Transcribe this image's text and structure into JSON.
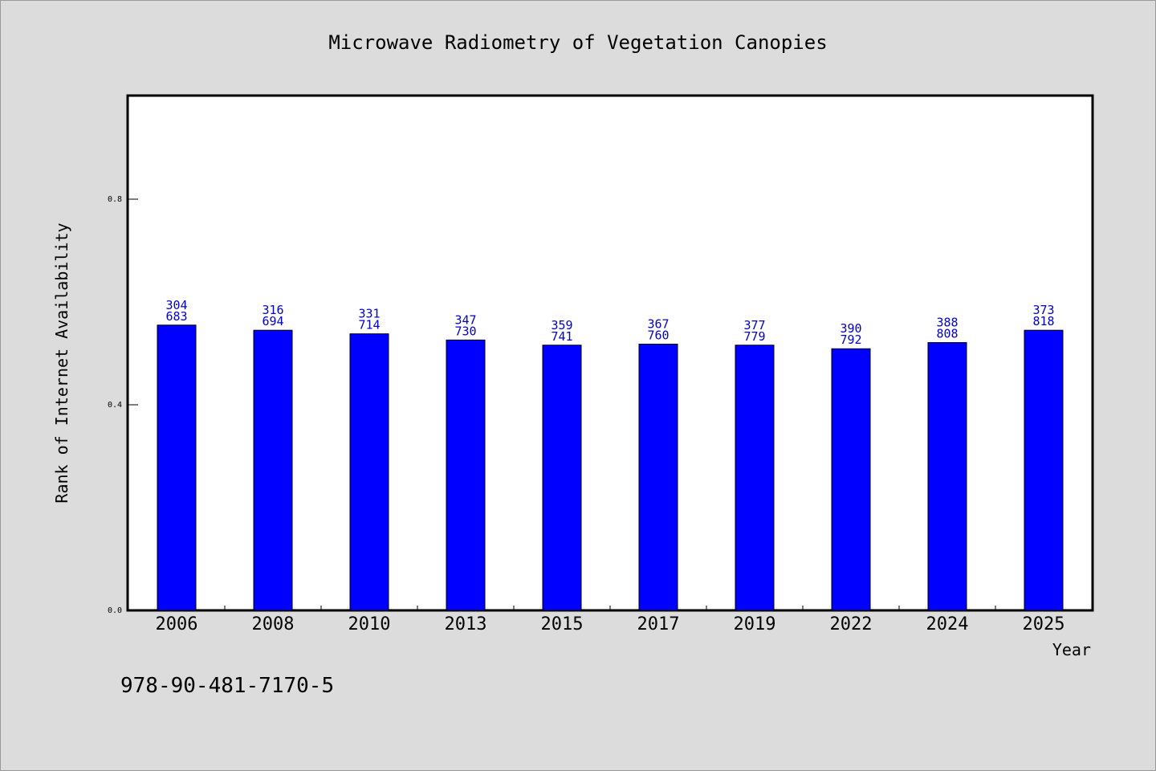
{
  "chart_data": {
    "type": "bar",
    "title": "Microwave Radiometry of Vegetation Canopies",
    "xlabel": "Year",
    "ylabel": "Rank of Internet Availability",
    "categories": [
      "2006",
      "2008",
      "2010",
      "2013",
      "2015",
      "2017",
      "2019",
      "2022",
      "2024",
      "2025"
    ],
    "values": [
      0.555,
      0.545,
      0.538,
      0.526,
      0.516,
      0.518,
      0.516,
      0.509,
      0.521,
      0.545
    ],
    "bar_labels": [
      [
        "304",
        "683"
      ],
      [
        "316",
        "694"
      ],
      [
        "331",
        "714"
      ],
      [
        "347",
        "730"
      ],
      [
        "359",
        "741"
      ],
      [
        "367",
        "760"
      ],
      [
        "377",
        "779"
      ],
      [
        "390",
        "792"
      ],
      [
        "388",
        "808"
      ],
      [
        "373",
        "818"
      ]
    ],
    "ylim": [
      0,
      1.0
    ],
    "yticks": [
      {
        "value": 0.0,
        "label": "0.0"
      },
      {
        "value": 0.4,
        "label": "0.4"
      },
      {
        "value": 0.8,
        "label": "0.8"
      }
    ],
    "bar_color": "#0000ff",
    "label_color": "#0000cc",
    "grid": false
  },
  "footer": {
    "isbn": "978-90-481-7170-5"
  }
}
